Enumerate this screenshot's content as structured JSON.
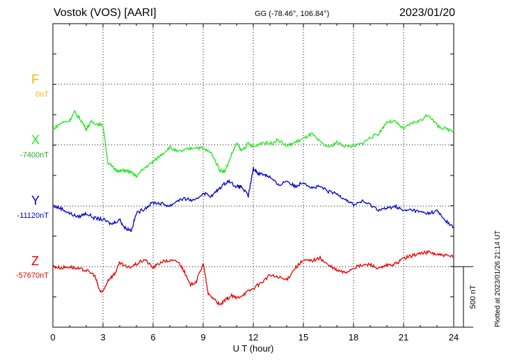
{
  "header": {
    "station": "Vostok (VOS)  [AARI]",
    "coords": "GG (-78.46°, 106.84°)",
    "date": "2023/01/20"
  },
  "footer_note": "Plotted at 2023/01/26 21:14 UT",
  "scale_label": "500 nT",
  "chart_data": {
    "type": "line",
    "xlabel": "U T (hour)",
    "xlim": [
      0,
      24
    ],
    "xticks": [
      "0",
      "3",
      "6",
      "9",
      "12",
      "15",
      "18",
      "21",
      "24"
    ],
    "grid": true,
    "series": [
      {
        "name": "F",
        "baseline": "0nT",
        "color": "#ffb000",
        "x": [],
        "y": []
      },
      {
        "name": "X",
        "baseline": "-7400nT",
        "color": "#22e622",
        "x": [
          0,
          0.5,
          1,
          1.3,
          1.7,
          2,
          2.3,
          2.7,
          3,
          3.3,
          3.7,
          4,
          4.3,
          4.7,
          5,
          5.5,
          6,
          6.5,
          7,
          7.5,
          8,
          8.5,
          9,
          9.5,
          10,
          10.3,
          10.7,
          11,
          11.3,
          11.7,
          12,
          12.5,
          13,
          13.5,
          14,
          14.5,
          15,
          15.5,
          16,
          16.5,
          17,
          17.5,
          18,
          18.5,
          19,
          19.5,
          20,
          20.5,
          21,
          21.5,
          22,
          22.5,
          23,
          23.5,
          24
        ],
        "y": [
          130,
          180,
          200,
          270,
          200,
          130,
          190,
          170,
          160,
          -150,
          -200,
          -220,
          -210,
          -230,
          -260,
          -190,
          -140,
          -80,
          -20,
          -60,
          -40,
          -20,
          -30,
          -70,
          -210,
          -220,
          -80,
          10,
          -50,
          10,
          -20,
          20,
          10,
          40,
          -10,
          20,
          50,
          90,
          20,
          -20,
          20,
          -10,
          -10,
          10,
          60,
          90,
          190,
          190,
          130,
          180,
          200,
          250,
          160,
          130,
          120
        ],
        "ylim": [
          -500,
          500
        ]
      },
      {
        "name": "Y",
        "baseline": "-11120nT",
        "color": "#0000cc",
        "x": [
          0,
          0.5,
          1,
          1.5,
          2,
          2.5,
          3,
          3.5,
          4,
          4.3,
          4.7,
          5,
          5.5,
          6,
          6.5,
          7,
          7.5,
          8,
          8.5,
          9,
          9.5,
          10,
          10.5,
          11,
          11.3,
          11.7,
          12,
          12.3,
          12.7,
          13,
          13.5,
          14,
          14.5,
          15,
          15.5,
          16,
          16.5,
          17,
          17.5,
          18,
          18.5,
          19,
          19.5,
          20,
          20.5,
          21,
          21.5,
          22,
          22.5,
          23,
          23.5,
          24
        ],
        "y": [
          0,
          -20,
          -60,
          -90,
          -60,
          -100,
          -110,
          -150,
          -110,
          -180,
          -200,
          -60,
          -20,
          30,
          20,
          0,
          50,
          60,
          40,
          110,
          80,
          150,
          210,
          160,
          160,
          80,
          310,
          270,
          260,
          240,
          170,
          210,
          160,
          200,
          150,
          160,
          120,
          100,
          60,
          10,
          40,
          10,
          -30,
          -20,
          0,
          -40,
          -30,
          -50,
          -60,
          -40,
          -120,
          -180
        ],
        "ylim": [
          -500,
          500
        ]
      },
      {
        "name": "Z",
        "baseline": "-57670nT",
        "color": "#e60000",
        "x": [
          0,
          0.5,
          1,
          1.5,
          2,
          2.5,
          2.8,
          3,
          3.3,
          3.7,
          4,
          4.5,
          5,
          5.5,
          6,
          6.5,
          7,
          7.5,
          7.8,
          8.2,
          8.6,
          9,
          9.3,
          9.7,
          10,
          10.3,
          10.7,
          11,
          11.5,
          12,
          12.5,
          13,
          13.5,
          14,
          14.5,
          15,
          15.5,
          16,
          16.5,
          17,
          17.5,
          18,
          18.5,
          19,
          19.5,
          20,
          20.5,
          21,
          21.5,
          22,
          22.5,
          23,
          23.5,
          24
        ],
        "y": [
          0,
          -10,
          0,
          -20,
          -30,
          -70,
          -200,
          -210,
          -110,
          -60,
          30,
          -10,
          20,
          60,
          -10,
          40,
          50,
          40,
          -20,
          -150,
          -120,
          30,
          -230,
          -270,
          -320,
          -280,
          -240,
          -260,
          -220,
          -180,
          -130,
          -70,
          -90,
          -110,
          -10,
          50,
          50,
          70,
          10,
          -30,
          -50,
          -10,
          10,
          20,
          -20,
          10,
          20,
          70,
          90,
          110,
          120,
          100,
          90,
          80
        ],
        "ylim": [
          -500,
          500
        ]
      }
    ]
  }
}
